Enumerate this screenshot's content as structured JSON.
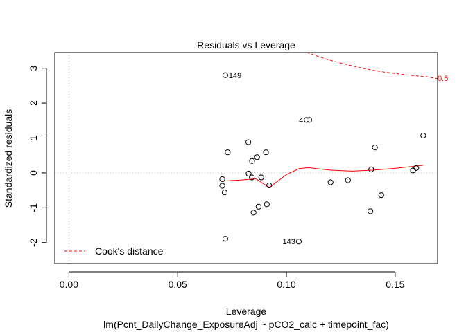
{
  "chart_data": {
    "type": "scatter",
    "title": "Residuals vs Leverage",
    "xlabel": "Leverage",
    "ylabel": "Standardized residuals",
    "subtitle": "lm(Pcnt_DailyChange_ExposureAdj ~ pCO2_calc + timepoint_fac)",
    "xlim": [
      -0.0065,
      0.1695
    ],
    "ylim": [
      -2.6,
      3.45
    ],
    "x_ticks": [
      0.0,
      0.05,
      0.1,
      0.15
    ],
    "x_tick_labels": [
      "0.00",
      "0.05",
      "0.10",
      "0.15"
    ],
    "y_ticks": [
      -2,
      -1,
      0,
      1,
      2,
      3
    ],
    "y_tick_labels": [
      "-2",
      "-1",
      "0",
      "1",
      "2",
      "3"
    ],
    "grid": false,
    "reference_lines": {
      "x": 0,
      "y": 0,
      "color": "#bebebe",
      "style": "dotted"
    },
    "legend": {
      "position": "bottom-left",
      "label": "Cook's distance",
      "color": "#ff0000",
      "style": "dashed"
    },
    "points": [
      {
        "x": 0.0719,
        "y": 2.8,
        "label": "149"
      },
      {
        "x": 0.1093,
        "y": 1.52,
        "label": "4"
      },
      {
        "x": 0.1105,
        "y": 1.52,
        "label": ""
      },
      {
        "x": 0.1057,
        "y": -1.97,
        "label": "143"
      },
      {
        "x": 0.1629,
        "y": 1.07,
        "label": ""
      },
      {
        "x": 0.0825,
        "y": 0.88,
        "label": ""
      },
      {
        "x": 0.1407,
        "y": 0.73,
        "label": ""
      },
      {
        "x": 0.073,
        "y": 0.59,
        "label": ""
      },
      {
        "x": 0.0906,
        "y": 0.59,
        "label": ""
      },
      {
        "x": 0.0865,
        "y": 0.45,
        "label": ""
      },
      {
        "x": 0.0842,
        "y": 0.34,
        "label": ""
      },
      {
        "x": 0.139,
        "y": 0.1,
        "label": ""
      },
      {
        "x": 0.1597,
        "y": 0.14,
        "label": ""
      },
      {
        "x": 0.1582,
        "y": 0.07,
        "label": ""
      },
      {
        "x": 0.0826,
        "y": -0.02,
        "label": ""
      },
      {
        "x": 0.0705,
        "y": -0.18,
        "label": ""
      },
      {
        "x": 0.0841,
        "y": -0.13,
        "label": ""
      },
      {
        "x": 0.0884,
        "y": -0.13,
        "label": ""
      },
      {
        "x": 0.1283,
        "y": -0.21,
        "label": ""
      },
      {
        "x": 0.1203,
        "y": -0.27,
        "label": ""
      },
      {
        "x": 0.0705,
        "y": -0.37,
        "label": ""
      },
      {
        "x": 0.0921,
        "y": -0.36,
        "label": ""
      },
      {
        "x": 0.0716,
        "y": -0.56,
        "label": ""
      },
      {
        "x": 0.1436,
        "y": -0.64,
        "label": ""
      },
      {
        "x": 0.091,
        "y": -0.9,
        "label": ""
      },
      {
        "x": 0.0872,
        "y": -0.97,
        "label": ""
      },
      {
        "x": 0.0849,
        "y": -1.14,
        "label": ""
      },
      {
        "x": 0.1386,
        "y": -1.1,
        "label": ""
      },
      {
        "x": 0.0719,
        "y": -1.89,
        "label": ""
      }
    ],
    "smoother": {
      "color": "#ff0000",
      "x": [
        0.0705,
        0.072,
        0.08,
        0.086,
        0.0921,
        0.1,
        0.1057,
        0.11,
        0.12,
        0.13,
        0.14,
        0.15,
        0.16,
        0.1629
      ],
      "y": [
        -0.25,
        -0.23,
        -0.2,
        -0.17,
        -0.42,
        -0.05,
        0.12,
        0.15,
        0.08,
        0.05,
        0.08,
        0.13,
        0.2,
        0.22
      ]
    },
    "cooks_curve": {
      "color": "#ff0000",
      "style": "dashed",
      "label": "0.5",
      "x": [
        0.1095,
        0.115,
        0.12,
        0.125,
        0.13,
        0.135,
        0.14,
        0.145,
        0.15,
        0.155,
        0.16,
        0.165,
        0.1695
      ],
      "y": [
        3.45,
        3.33,
        3.23,
        3.15,
        3.07,
        3.0,
        2.94,
        2.89,
        2.85,
        2.81,
        2.78,
        2.75,
        2.7
      ]
    }
  }
}
